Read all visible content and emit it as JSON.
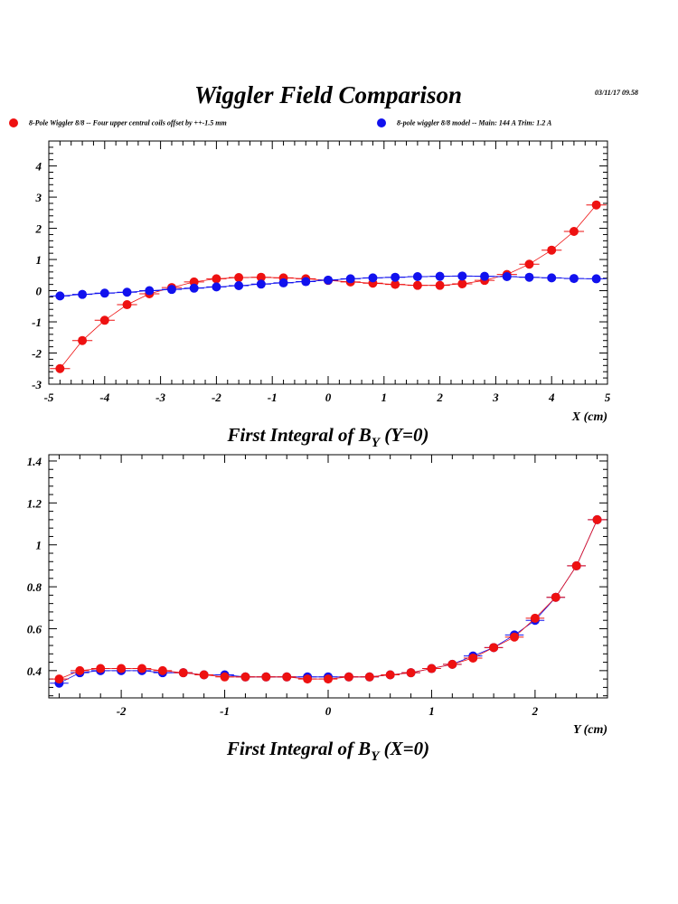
{
  "page": {
    "title": "Wiggler Field Comparison",
    "timestamp": "03/11/17  09.58"
  },
  "legend": {
    "red_label": "8-Pole Wiggler 8/8  -- Four upper central coils offset by ++-1.5 mm",
    "blue_label": "8-pole wiggler 8/8 model --  Main: 144 A    Trim: 1.2 A"
  },
  "colors": {
    "red": "#ee1111",
    "blue": "#1111ee",
    "axis": "#000000"
  },
  "chart_data": [
    {
      "type": "scatter",
      "title": "First Integral of B",
      "title_sub": "Y",
      "title_suffix": " (Y=0)",
      "xlabel": "X (cm)",
      "ylabel": "",
      "xlim": [
        -5,
        5
      ],
      "ylim": [
        -3,
        4.8
      ],
      "xticks": [
        -5,
        -4,
        -3,
        -2,
        -1,
        0,
        1,
        2,
        3,
        4,
        5
      ],
      "yticks": [
        -3,
        -2,
        -1,
        0,
        1,
        2,
        3,
        4
      ],
      "x_err": 0.18,
      "series": [
        {
          "name": "8-Pole Wiggler 8/8  -- Four upper central coils offset by ++-1.5 mm",
          "color": "red",
          "x": [
            -4.8,
            -4.4,
            -4.0,
            -3.6,
            -3.2,
            -2.8,
            -2.4,
            -2.0,
            -1.6,
            -1.2,
            -0.8,
            -0.4,
            0.0,
            0.4,
            0.8,
            1.2,
            1.6,
            2.0,
            2.4,
            2.8,
            3.2,
            3.6,
            4.0,
            4.4,
            4.8
          ],
          "y": [
            -2.5,
            -1.6,
            -0.95,
            -0.45,
            -0.1,
            0.1,
            0.28,
            0.38,
            0.42,
            0.43,
            0.41,
            0.38,
            0.33,
            0.28,
            0.24,
            0.2,
            0.17,
            0.17,
            0.22,
            0.33,
            0.52,
            0.85,
            1.3,
            1.9,
            2.75
          ]
        },
        {
          "name": "8-pole wiggler 8/8 model --  Main: 144 A    Trim: 1.2 A",
          "color": "blue",
          "x": [
            -4.8,
            -4.4,
            -4.0,
            -3.6,
            -3.2,
            -2.8,
            -2.4,
            -2.0,
            -1.6,
            -1.2,
            -0.8,
            -0.4,
            0.0,
            0.4,
            0.8,
            1.2,
            1.6,
            2.0,
            2.4,
            2.8,
            3.2,
            3.6,
            4.0,
            4.4,
            4.8
          ],
          "y": [
            -0.17,
            -0.12,
            -0.08,
            -0.05,
            0.0,
            0.04,
            0.08,
            0.12,
            0.16,
            0.21,
            0.25,
            0.29,
            0.34,
            0.38,
            0.41,
            0.43,
            0.45,
            0.46,
            0.47,
            0.46,
            0.45,
            0.43,
            0.41,
            0.39,
            0.38
          ]
        }
      ]
    },
    {
      "type": "scatter",
      "title": "First Integral of B",
      "title_sub": "Y",
      "title_suffix": " (X=0)",
      "xlabel": "Y (cm)",
      "ylabel": "",
      "xlim": [
        -2.7,
        2.7
      ],
      "ylim": [
        0.27,
        1.43
      ],
      "xticks": [
        -2,
        -1,
        0,
        1,
        2
      ],
      "yticks": [
        0.4,
        0.6,
        0.8,
        1.0,
        1.2,
        1.4
      ],
      "ytick_labels": [
        "0.4",
        "0.6",
        "0.8",
        "1",
        "1.2",
        "1.4"
      ],
      "x_err": 0.09,
      "series": [
        {
          "name": "8-pole wiggler 8/8 model --  Main: 144 A    Trim: 1.2 A",
          "color": "blue",
          "x": [
            -2.6,
            -2.4,
            -2.2,
            -2.0,
            -1.8,
            -1.6,
            -1.4,
            -1.2,
            -1.0,
            -0.8,
            -0.6,
            -0.4,
            -0.2,
            0.0,
            0.2,
            0.4,
            0.6,
            0.8,
            1.0,
            1.2,
            1.4,
            1.6,
            1.8,
            2.0,
            2.2,
            2.4,
            2.6
          ],
          "y": [
            0.34,
            0.39,
            0.4,
            0.4,
            0.4,
            0.39,
            0.39,
            0.38,
            0.38,
            0.37,
            0.37,
            0.37,
            0.37,
            0.37,
            0.37,
            0.37,
            0.38,
            0.39,
            0.41,
            0.43,
            0.47,
            0.51,
            0.57,
            0.64,
            0.75,
            0.9,
            1.12
          ]
        },
        {
          "name": "8-Pole Wiggler 8/8  -- Four upper central coils offset by ++-1.5 mm",
          "color": "red",
          "x": [
            -2.6,
            -2.4,
            -2.2,
            -2.0,
            -1.8,
            -1.6,
            -1.4,
            -1.2,
            -1.0,
            -0.8,
            -0.6,
            -0.4,
            -0.2,
            0.0,
            0.2,
            0.4,
            0.6,
            0.8,
            1.0,
            1.2,
            1.4,
            1.6,
            1.8,
            2.0,
            2.2,
            2.4,
            2.6
          ],
          "y": [
            0.36,
            0.4,
            0.41,
            0.41,
            0.41,
            0.4,
            0.39,
            0.38,
            0.37,
            0.37,
            0.37,
            0.37,
            0.36,
            0.36,
            0.37,
            0.37,
            0.38,
            0.39,
            0.41,
            0.43,
            0.46,
            0.51,
            0.56,
            0.65,
            0.75,
            0.9,
            1.12
          ]
        }
      ]
    }
  ]
}
